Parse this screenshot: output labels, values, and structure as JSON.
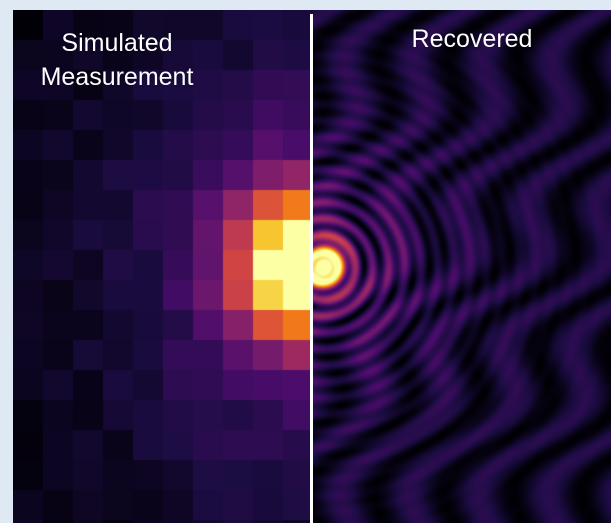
{
  "panels": {
    "left": {
      "title_line1": "Simulated",
      "title_line2": "Measurement",
      "image": "pixelated-inferno-heatmap"
    },
    "right": {
      "title": "Recovered",
      "image": "smooth-ring-interference-pattern"
    }
  },
  "colors": {
    "page_background": "#dfe9f3",
    "divider": "#ffffff",
    "label_text": "#ffffff",
    "colormap": [
      "#000004",
      "#1b0c41",
      "#4a0c6b",
      "#781c6d",
      "#a52c60",
      "#cf4446",
      "#ed6925",
      "#fb9b06",
      "#f7d13d",
      "#fcffa4"
    ]
  }
}
